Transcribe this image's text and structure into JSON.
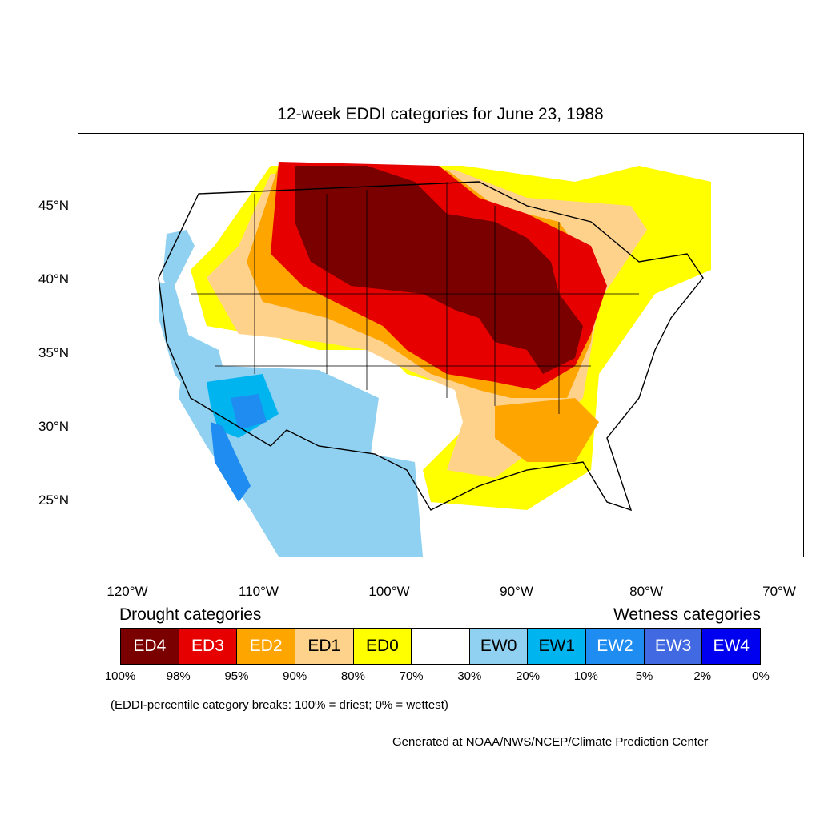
{
  "title": "12-week EDDI categories for June 23, 1988",
  "lat_labels": [
    "45°N",
    "40°N",
    "35°N",
    "30°N",
    "25°N"
  ],
  "lon_labels": [
    "120°W",
    "110°W",
    "100°W",
    "90°W",
    "80°W",
    "70°W"
  ],
  "legend": {
    "drought_title": "Drought categories",
    "wetness_title": "Wetness categories",
    "categories": [
      {
        "label": "ED4",
        "color": "#7a0000",
        "text_color": "#ffffff"
      },
      {
        "label": "ED3",
        "color": "#e60000",
        "text_color": "#ffffff"
      },
      {
        "label": "ED2",
        "color": "#ffa500",
        "text_color": "#ffffff"
      },
      {
        "label": "ED1",
        "color": "#ffd28c",
        "text_color": "#000000"
      },
      {
        "label": "ED0",
        "color": "#ffff00",
        "text_color": "#000000"
      },
      {
        "label": "",
        "color": "#ffffff",
        "text_color": "#000000"
      },
      {
        "label": "EW0",
        "color": "#90d0f0",
        "text_color": "#000000"
      },
      {
        "label": "EW1",
        "color": "#00b4f0",
        "text_color": "#000000"
      },
      {
        "label": "EW2",
        "color": "#1e8cf0",
        "text_color": "#ffffff"
      },
      {
        "label": "EW3",
        "color": "#4169e1",
        "text_color": "#ffffff"
      },
      {
        "label": "EW4",
        "color": "#0000f0",
        "text_color": "#ffffff"
      }
    ],
    "breaks": [
      "100%",
      "98%",
      "95%",
      "90%",
      "80%",
      "70%",
      "30%",
      "20%",
      "10%",
      "5%",
      "2%",
      "0%"
    ]
  },
  "note": "(EDDI-percentile category breaks: 100% = driest; 0% = wettest)",
  "credit": "Generated at NOAA/NWS/NCEP/Climate Prediction Center"
}
